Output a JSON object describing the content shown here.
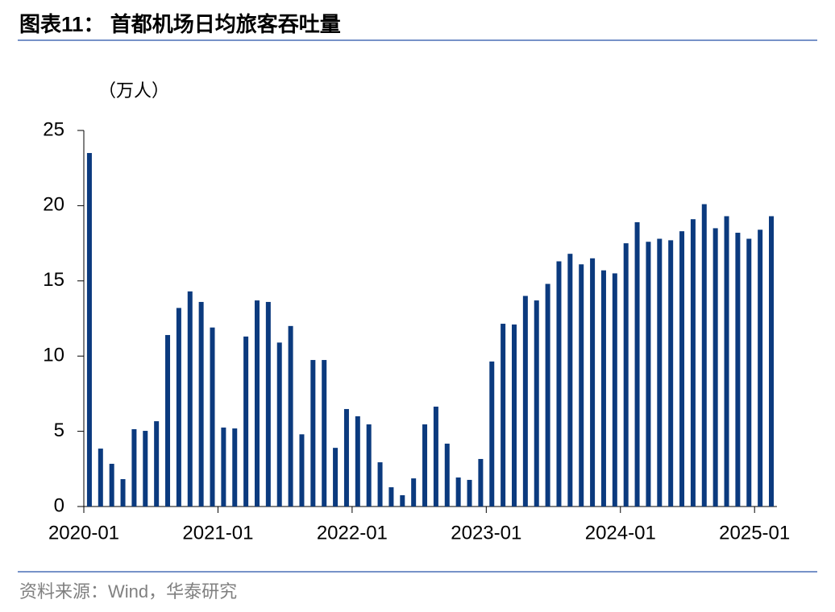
{
  "chart_data": {
    "type": "bar",
    "title": "图表11：  首都机场日均旅客吞吐量",
    "y_unit_label": "（万人）",
    "source": "资料来源：Wind，华泰研究",
    "color": "#0b3a7e",
    "categories": [
      "2020-01",
      null,
      null,
      null,
      null,
      null,
      null,
      null,
      null,
      null,
      null,
      null,
      "2021-01",
      null,
      null,
      null,
      null,
      null,
      null,
      null,
      null,
      null,
      null,
      null,
      "2022-01",
      null,
      null,
      null,
      null,
      null,
      null,
      null,
      null,
      null,
      null,
      null,
      "2023-01",
      null,
      null,
      null,
      null,
      null,
      null,
      null,
      null,
      null,
      null,
      null,
      "2024-01",
      null,
      null,
      null,
      null,
      null,
      null,
      null,
      null,
      null,
      null,
      null,
      "2025-01",
      null
    ],
    "values": [
      23.5,
      3.85,
      2.84,
      1.82,
      5.14,
      5.03,
      5.67,
      11.4,
      13.2,
      14.3,
      13.6,
      11.9,
      5.25,
      5.19,
      11.3,
      13.7,
      13.6,
      10.9,
      12.0,
      4.8,
      9.74,
      9.74,
      3.9,
      6.48,
      6.0,
      5.46,
      2.94,
      1.28,
      0.75,
      1.87,
      5.46,
      6.64,
      4.18,
      1.93,
      1.77,
      3.16,
      9.64,
      12.15,
      12.1,
      14.0,
      13.7,
      14.8,
      16.3,
      16.8,
      16.1,
      16.5,
      15.7,
      15.5,
      17.5,
      18.9,
      17.6,
      17.8,
      17.7,
      18.3,
      19.1,
      20.1,
      18.5,
      19.3,
      18.2,
      17.8,
      18.4,
      19.3
    ],
    "ylim": [
      0,
      25
    ],
    "yticks": [
      0,
      5,
      10,
      15,
      20,
      25
    ],
    "grid": false
  }
}
